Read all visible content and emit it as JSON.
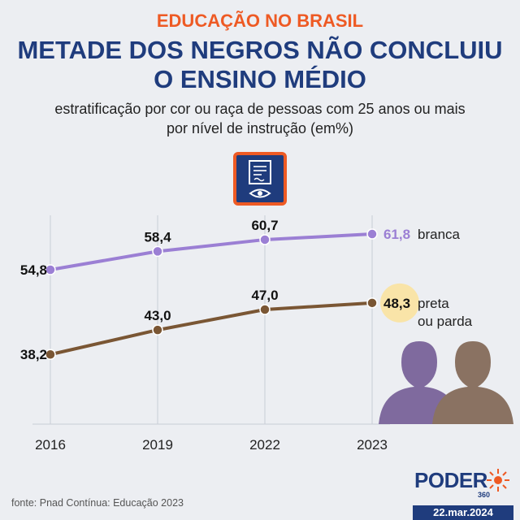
{
  "header": {
    "kicker": "EDUCAÇÃO NO BRASIL",
    "title_line1": "METADE DOS NEGROS NÃO CONCLUIU",
    "title_line2": "O ENSINO MÉDIO",
    "subtitle_line1": "estratificação por cor ou raça de pessoas com 25 anos ou mais",
    "subtitle_line2": "por nível de instrução (em%)"
  },
  "icons": {
    "document": "document-eye-icon",
    "people": "people-silhouette-icon",
    "logo": "poder360-sun-icon"
  },
  "colors": {
    "accent": "#ee5a24",
    "title": "#1f3c7d",
    "branca": "#9b7fd4",
    "preta": "#7a5634",
    "highlight": "#f9e4a8",
    "silhouette_left": "#7f6a9e",
    "silhouette_right": "#8a7262"
  },
  "chart_data": {
    "type": "line",
    "categories": [
      "2016",
      "2019",
      "2022",
      "2023"
    ],
    "ylim": [
      30,
      66
    ],
    "series": [
      {
        "name": "branca",
        "label_lines": [
          "branca"
        ],
        "values": [
          54.8,
          58.4,
          60.7,
          61.8
        ],
        "labels": [
          "54,8",
          "58,4",
          "60,7",
          "61,8"
        ]
      },
      {
        "name": "preta ou parda",
        "label_lines": [
          "preta",
          "ou parda"
        ],
        "values": [
          38.2,
          43.0,
          47.0,
          48.3
        ],
        "labels": [
          "38,2",
          "43,0",
          "47,0",
          "48,3"
        ]
      }
    ]
  },
  "footer": {
    "source": "fonte: Pnad Contínua: Educação 2023",
    "logo_text": "PODER",
    "logo_number": "360",
    "date": "22.mar.2024"
  }
}
